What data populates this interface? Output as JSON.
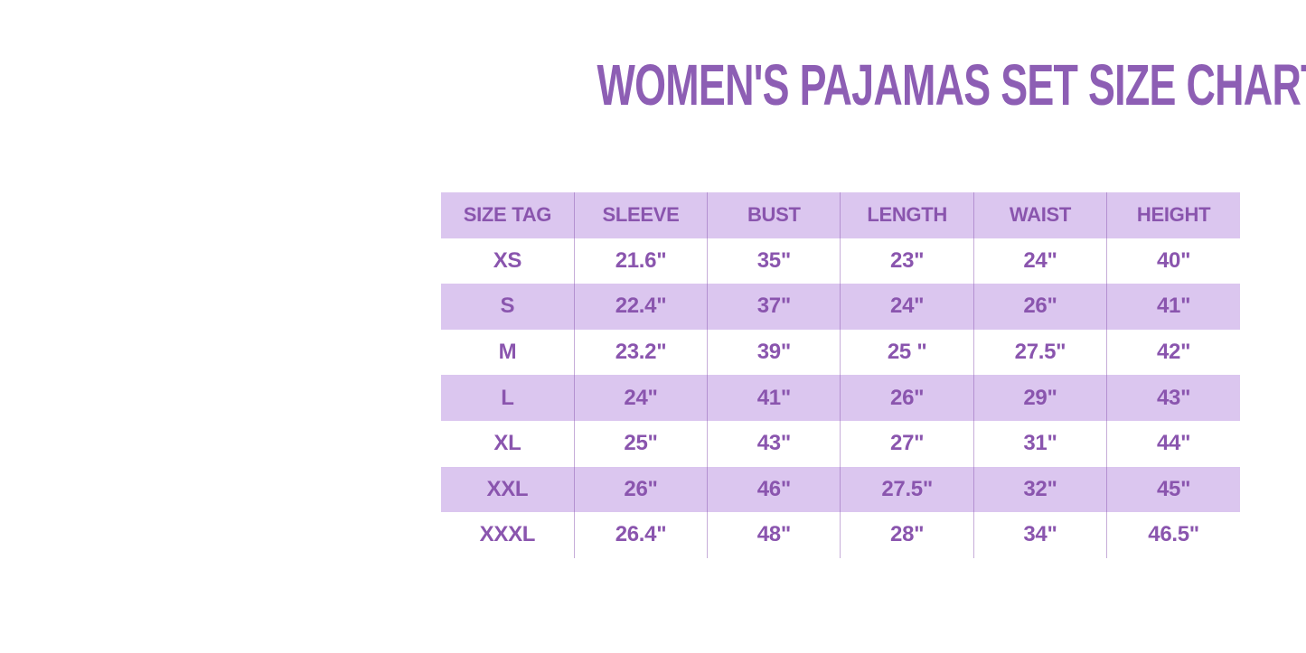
{
  "title": "WOMEN'S PAJAMAS SET SIZE CHART",
  "chart_data": {
    "type": "table",
    "title": "WOMEN'S PAJAMAS SET SIZE CHART",
    "columns": [
      "SIZE TAG",
      "SLEEVE",
      "BUST",
      "LENGTH",
      "WAIST",
      "HEIGHT"
    ],
    "rows": [
      [
        "XS",
        "21.6\"",
        "35\"",
        "23\"",
        "24\"",
        "40\""
      ],
      [
        "S",
        "22.4\"",
        "37\"",
        "24\"",
        "26\"",
        "41\""
      ],
      [
        "M",
        "23.2\"",
        "39\"",
        "25 \"",
        "27.5\"",
        "42\""
      ],
      [
        "L",
        "24\"",
        "41\"",
        "26\"",
        "29\"",
        "43\""
      ],
      [
        "XL",
        "25\"",
        "43\"",
        "27\"",
        "31\"",
        "44\""
      ],
      [
        "XXL",
        "26\"",
        "46\"",
        "27.5\"",
        "32\"",
        "45\""
      ],
      [
        "XXXL",
        "26.4\"",
        "48\"",
        "28\"",
        "34\"",
        "46.5\""
      ]
    ],
    "layout": {
      "row_striping": [
        "lavender-header",
        "white",
        "lavender",
        "white",
        "lavender",
        "white",
        "lavender",
        "white"
      ],
      "column_dividers": true,
      "horizontal_row_lines": false
    }
  },
  "colors": {
    "title_text": "#8d5eb4",
    "cell_text": "#8a55ae",
    "row_lavender": "#dbc6ef",
    "row_white": "#ffffff",
    "divider": "rgba(141,92,179,0.5)",
    "background": "#ffffff"
  }
}
